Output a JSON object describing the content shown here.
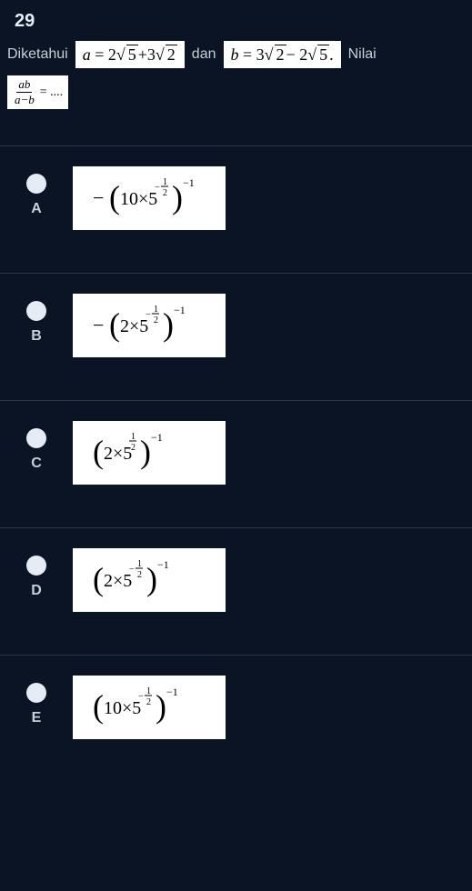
{
  "question": {
    "number": "29",
    "text_before": "Diketahui",
    "formula_a": "a = 2√5+3√2",
    "text_mid": "dan",
    "formula_b": "b = 3√2− 2√5.",
    "text_after": "Nilai",
    "expr_frac_num": "ab",
    "expr_frac_den": "a−b",
    "expr_eq": "= ...."
  },
  "options": [
    {
      "label": "A",
      "svg_expr": "neg_10x5_neghalf_inv"
    },
    {
      "label": "B",
      "svg_expr": "neg_2x5_neghalf_inv"
    },
    {
      "label": "C",
      "svg_expr": "pos_2x5_poshalf_inv"
    },
    {
      "label": "D",
      "svg_expr": "pos_2x5_neghalf_inv"
    },
    {
      "label": "E",
      "svg_expr": "pos_10x5_neghalf_inv"
    }
  ],
  "style": {
    "bg": "#0a1425",
    "border": "#2a3548",
    "text": "#c6ced8",
    "box_bg": "#ffffff",
    "box_fg": "#000000",
    "radio_bg": "#e6ecf3"
  }
}
